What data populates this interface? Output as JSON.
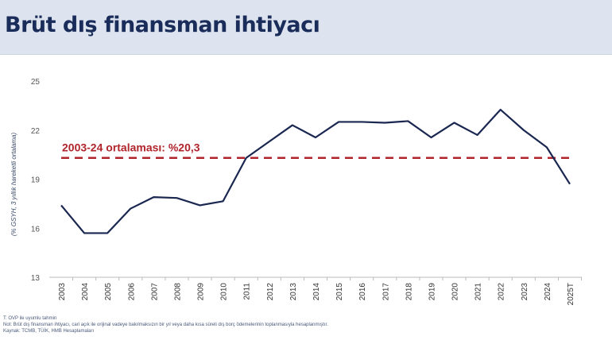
{
  "header": {
    "title": "Brüt dış finansman ihtiyacı"
  },
  "chart_data": {
    "type": "line",
    "title": "",
    "ylabel": "(% GSYH, 3 yıllık hareketli ortalama)",
    "xlabel": "",
    "ylim": [
      13,
      25
    ],
    "yticks": [
      "13",
      "16",
      "19",
      "22",
      "25"
    ],
    "grid": false,
    "categories": [
      "2003",
      "2004",
      "2005",
      "2006",
      "2007",
      "2008",
      "2009",
      "2010",
      "2011",
      "2012",
      "2013",
      "2014",
      "2015",
      "2016",
      "2017",
      "2018",
      "2019",
      "2020",
      "2021",
      "2022",
      "2023",
      "2024",
      "2025T"
    ],
    "series": [
      {
        "values": [
          17.4,
          15.7,
          15.7,
          17.2,
          17.9,
          17.85,
          17.4,
          17.65,
          20.3,
          21.3,
          22.3,
          21.55,
          22.5,
          22.5,
          22.45,
          22.55,
          21.55,
          22.45,
          21.7,
          23.25,
          22.0,
          20.95,
          18.7
        ],
        "color": "#1a2750"
      }
    ],
    "reference_line": {
      "value": 20.3,
      "label": "2003-24 ortalaması: %20,3",
      "color": "#b0242b",
      "style": "dashed"
    }
  },
  "notes": [
    "T: OVP ile uyumlu tahmin",
    "Not: Brüt dış finansman ihtiyacı, cari açık ile orijinal vadeye bakılmaksızın bir yıl veya daha kısa süreli dış borç ödemelerinin toplanmasıyla hesaplanmıştır.",
    "Kaynak: TCMB, TÜİK, HMB Hesaplamaları"
  ]
}
